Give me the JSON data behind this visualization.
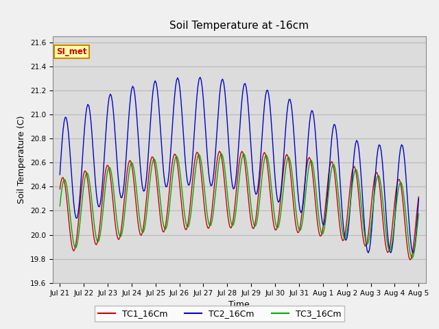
{
  "title": "Soil Temperature at -16cm",
  "xlabel": "Time",
  "ylabel": "Soil Temperature (C)",
  "ylim": [
    19.6,
    21.65
  ],
  "yticks": [
    19.6,
    19.8,
    20.0,
    20.2,
    20.4,
    20.6,
    20.8,
    21.0,
    21.2,
    21.4,
    21.6
  ],
  "xtick_labels": [
    "Jul 21",
    "Jul 22",
    "Jul 23",
    "Jul 24",
    "Jul 25",
    "Jul 26",
    "Jul 27",
    "Jul 28",
    "Jul 29",
    "Jul 30",
    "Jul 31",
    "Aug 1",
    "Aug 2",
    "Aug 3",
    "Aug 4",
    "Aug 5"
  ],
  "bg_color": "#e8e8e8",
  "fig_bg": "#f0f0f0",
  "plot_bg": "#dcdcdc",
  "grid_color": "#c8c8c8",
  "legend_label": "SI_met",
  "legend_bg": "#ffffaa",
  "legend_border": "#cc8800",
  "tc1_color": "#cc0000",
  "tc2_color": "#0000cc",
  "tc3_color": "#00aa00",
  "tc1_label": "TC1_16Cm",
  "tc2_label": "TC2_16Cm",
  "tc3_label": "TC3_16Cm"
}
